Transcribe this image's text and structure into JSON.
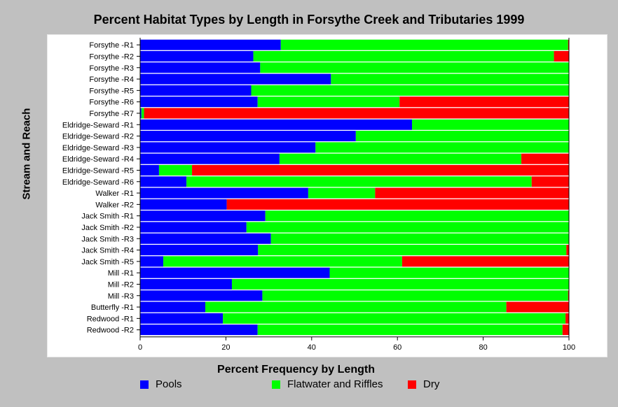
{
  "chart_data": {
    "type": "bar",
    "orientation": "horizontal",
    "stacked": true,
    "title": "Percent Habitat Types by Length in Forsythe Creek and Tributaries 1999",
    "xlabel": "Percent Frequency by Length",
    "ylabel": "Stream and Reach",
    "xlim": [
      0,
      100
    ],
    "xticks": [
      0,
      20,
      40,
      60,
      80,
      100
    ],
    "grid": false,
    "legend_position": "bottom",
    "categories": [
      "Forsythe -R1",
      "Forsythe -R2",
      "Forsythe -R3",
      "Forsythe -R4",
      "Forsythe -R5",
      "Forsythe -R6",
      "Forsythe -R7",
      "Eldridge-Seward -R1",
      "Eldridge-Seward -R2",
      "Eldridge-Seward -R3",
      "Eldridge-Seward -R4",
      "Eldridge-Seward -R5",
      "Eldridge-Seward -R6",
      "Walker -R1",
      "Walker -R2",
      "Jack Smith -R1",
      "Jack Smith -R2",
      "Jack Smith -R3",
      "Jack Smith -R4",
      "Jack Smith -R5",
      "Mill -R1",
      "Mill -R2",
      "Mill -R3",
      "Butterfly -R1",
      "Redwood -R1",
      "Redwood -R2"
    ],
    "series": [
      {
        "name": "Pools",
        "color": "#0000ff",
        "values": [
          32.8,
          26.4,
          28.0,
          44.5,
          25.9,
          27.4,
          0.3,
          63.4,
          50.3,
          40.9,
          32.5,
          4.4,
          10.8,
          39.2,
          20.2,
          29.2,
          24.8,
          30.5,
          27.5,
          5.4,
          44.2,
          21.4,
          28.5,
          15.2,
          19.3,
          27.4
        ]
      },
      {
        "name": "Flatwater and Riffles",
        "color": "#00ff00",
        "values": [
          67.0,
          70.1,
          72.0,
          55.5,
          74.1,
          33.1,
          0.6,
          36.6,
          49.7,
          59.1,
          56.4,
          7.7,
          80.5,
          15.6,
          0.0,
          70.8,
          75.2,
          69.5,
          71.9,
          55.7,
          55.8,
          78.6,
          71.3,
          70.2,
          79.9,
          71.1
        ]
      },
      {
        "name": "Dry",
        "color": "#ff0000",
        "values": [
          0.2,
          3.5,
          0.0,
          0.0,
          0.0,
          39.5,
          99.1,
          0.0,
          0.0,
          0.0,
          11.1,
          87.9,
          8.7,
          45.2,
          79.8,
          0.0,
          0.0,
          0.0,
          0.6,
          38.9,
          0.0,
          0.0,
          0.2,
          14.6,
          0.8,
          1.5
        ]
      }
    ]
  }
}
